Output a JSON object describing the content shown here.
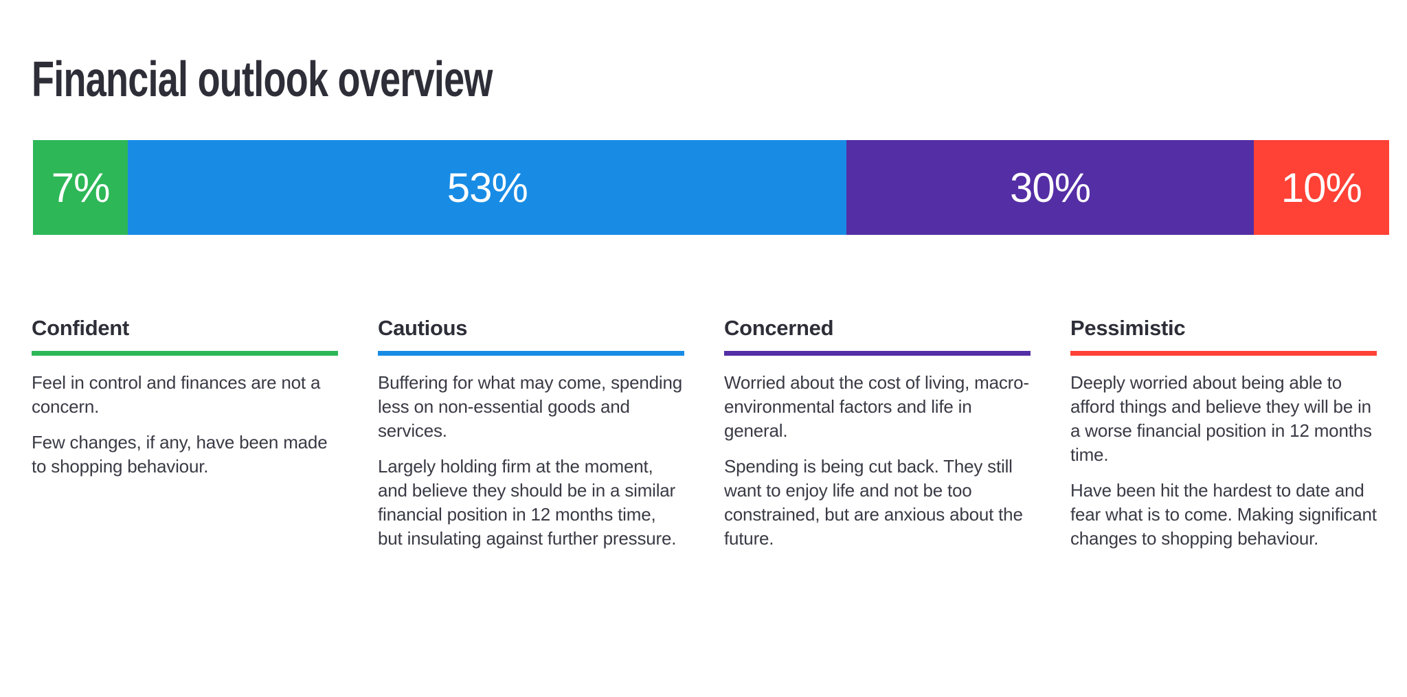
{
  "page": {
    "title": "Financial outlook overview",
    "background": "#ffffff",
    "title_color": "#2e2e38",
    "body_text_color": "#3a3a45"
  },
  "bar": {
    "segments": [
      {
        "name": "Confident",
        "label": "7%",
        "value": 7,
        "color": "#2DB757",
        "text_color": "#ffffff"
      },
      {
        "name": "Cautious",
        "label": "53%",
        "value": 53,
        "color": "#188CE5",
        "text_color": "#ffffff"
      },
      {
        "name": "Concerned",
        "label": "30%",
        "value": 30,
        "color": "#542EA5",
        "text_color": "#ffffff"
      },
      {
        "name": "Pessimistic",
        "label": "10%",
        "value": 10,
        "color": "#FF4136",
        "text_color": "#ffffff"
      }
    ]
  },
  "columns": {
    "items": [
      {
        "title": "Confident",
        "accent": "#2DB757",
        "paragraphs": [
          "Feel in control and finances are not a concern.",
          "Few changes, if any, have been made to shopping behaviour."
        ]
      },
      {
        "title": "Cautious",
        "accent": "#188CE5",
        "paragraphs": [
          "Buffering for what may come, spending less on non-essential goods and services.",
          "Largely holding firm at the moment, and believe they should be in a similar financial position in 12 months time, but insulating against further pressure."
        ]
      },
      {
        "title": "Concerned",
        "accent": "#542EA5",
        "paragraphs": [
          "Worried about the cost of living, macro-environmental factors and life in general.",
          "Spending is being cut back. They still want to enjoy life and not be too constrained, but are anxious about the future."
        ]
      },
      {
        "title": "Pessimistic",
        "accent": "#FF4136",
        "paragraphs": [
          "Deeply worried about being able to afford things and believe they will be in a worse financial position in 12 months time.",
          "Have been hit the hardest to date and fear what is to come. Making significant changes to shopping behaviour."
        ]
      }
    ]
  },
  "chart_data": {
    "type": "bar",
    "subtype": "horizontal-stacked-single-bar",
    "title": "Financial outlook overview",
    "categories": [
      "Confident",
      "Cautious",
      "Concerned",
      "Pessimistic"
    ],
    "values": [
      7,
      53,
      30,
      10
    ],
    "unit": "%",
    "data_labels": [
      "7%",
      "53%",
      "30%",
      "10%"
    ],
    "colors": [
      "#2DB757",
      "#188CE5",
      "#542EA5",
      "#FF4136"
    ],
    "xlim": [
      0,
      100
    ],
    "axes_visible": false,
    "grid": false,
    "legend_position": "below-bar-as-description-columns",
    "data_label_position": "centered-inside-segment",
    "data_label_color": "#ffffff"
  }
}
